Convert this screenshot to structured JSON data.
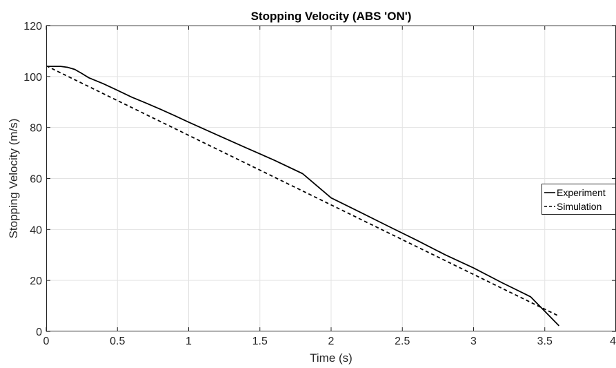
{
  "chart_data": {
    "type": "line",
    "title": "Stopping Velocity (ABS 'ON')",
    "xlabel": "Time (s)",
    "ylabel": "Stopping Velocity (m/s)",
    "xlim": [
      0,
      4
    ],
    "ylim": [
      0,
      120
    ],
    "xticks": [
      0,
      0.5,
      1,
      1.5,
      2,
      2.5,
      3,
      3.5,
      4
    ],
    "xtick_labels": [
      "0",
      "0.5",
      "1",
      "1.5",
      "2",
      "2.5",
      "3",
      "3.5",
      "4"
    ],
    "yticks": [
      0,
      20,
      40,
      60,
      80,
      100,
      120
    ],
    "ytick_labels": [
      "0",
      "20",
      "40",
      "60",
      "80",
      "100",
      "120"
    ],
    "grid": true,
    "legend_position": "right",
    "series": [
      {
        "name": "Experiment",
        "style": "solid",
        "color": "#000000",
        "x": [
          0,
          0.1,
          0.15,
          0.2,
          0.25,
          0.3,
          0.4,
          0.5,
          0.6,
          0.7,
          0.8,
          0.9,
          1.0,
          1.2,
          1.4,
          1.6,
          1.8,
          2.0,
          2.2,
          2.4,
          2.6,
          2.8,
          3.0,
          3.2,
          3.4,
          3.6
        ],
        "y": [
          104,
          104,
          103.6,
          102.8,
          101.2,
          99.5,
          97.2,
          94.6,
          91.9,
          89.6,
          87.2,
          84.7,
          82.1,
          77.1,
          72.1,
          67.2,
          61.9,
          52.4,
          46.9,
          41.3,
          35.8,
          30.1,
          24.9,
          19.1,
          13.6,
          2.2
        ]
      },
      {
        "name": "Simulation",
        "style": "dashed",
        "color": "#000000",
        "x": [
          0,
          3.6
        ],
        "y": [
          104.2,
          6
        ]
      }
    ]
  }
}
